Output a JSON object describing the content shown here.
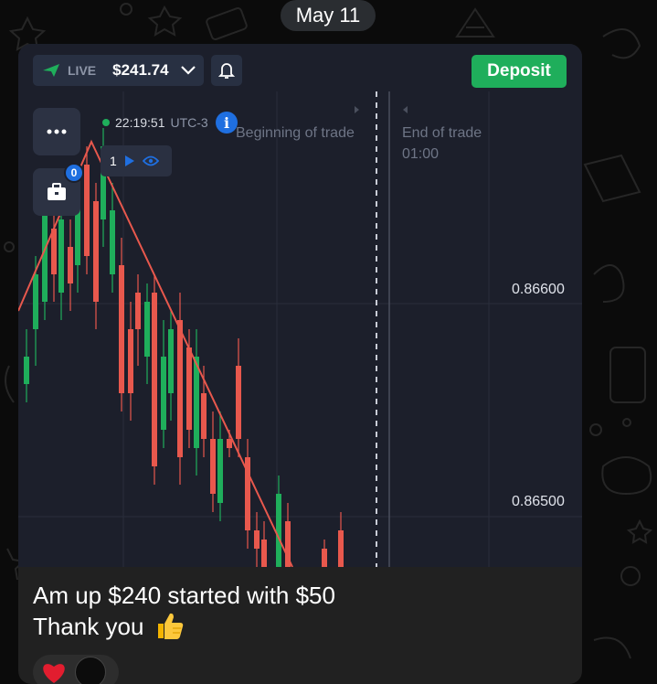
{
  "date_separator": "May 11",
  "platform": {
    "account_mode": "LIVE",
    "balance": "$241.74",
    "deposit_label": "Deposit",
    "menu_badge_count": "0",
    "server_time": "22:19:51",
    "timezone": "UTC-3",
    "trade_start_label": "Beginning of trade",
    "trade_end_label": "End of trade",
    "trade_end_time": "01:00",
    "active_trades_count": "1",
    "price_levels": [
      "0.86600",
      "0.86500"
    ],
    "colors": {
      "up": "#1fae5b",
      "down": "#e8584d",
      "accent": "#1f6fe0",
      "bg": "#1c1f2b"
    }
  },
  "message": {
    "line1": "Am up $240 started with $50",
    "line2": "Thank you",
    "emoji": "thumbs-up-emoji"
  },
  "reactions": {
    "emoji": "red-heart",
    "avatar": "reactor-avatar"
  }
}
